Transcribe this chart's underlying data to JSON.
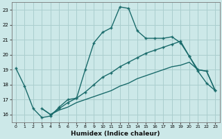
{
  "xlabel": "Humidex (Indice chaleur)",
  "bg_color": "#cce8e8",
  "grid_color": "#aacece",
  "line_color": "#1a6b6b",
  "xlim": [
    -0.5,
    23.5
  ],
  "ylim": [
    15.5,
    23.5
  ],
  "xticks": [
    0,
    1,
    2,
    3,
    4,
    5,
    6,
    7,
    8,
    9,
    10,
    11,
    12,
    13,
    14,
    15,
    16,
    17,
    18,
    19,
    20,
    21,
    22,
    23
  ],
  "yticks": [
    16,
    17,
    18,
    19,
    20,
    21,
    22,
    23
  ],
  "line1_x": [
    0,
    1,
    2,
    3,
    4,
    5,
    6,
    7,
    8,
    9,
    10,
    11,
    12,
    13,
    14,
    15,
    16,
    17,
    18,
    19,
    20,
    21,
    22,
    23
  ],
  "line1_y": [
    19.1,
    17.9,
    16.4,
    15.8,
    15.9,
    16.5,
    17.0,
    17.1,
    19.0,
    20.8,
    21.5,
    21.8,
    23.2,
    23.1,
    21.6,
    21.1,
    21.1,
    21.1,
    21.2,
    20.8,
    19.9,
    18.9,
    18.1,
    17.6
  ],
  "line2_x": [
    3,
    4,
    5,
    6,
    7,
    8,
    9,
    10,
    11,
    12,
    13,
    14,
    15,
    16,
    17,
    18,
    19,
    20,
    21,
    22,
    23
  ],
  "line2_y": [
    16.4,
    16.0,
    16.4,
    16.8,
    17.1,
    17.5,
    18.0,
    18.5,
    18.8,
    19.2,
    19.5,
    19.8,
    20.1,
    20.3,
    20.5,
    20.7,
    20.9,
    19.9,
    19.0,
    18.9,
    17.6
  ],
  "line3_x": [
    3,
    4,
    5,
    6,
    7,
    8,
    9,
    10,
    11,
    12,
    13,
    14,
    15,
    16,
    17,
    18,
    19,
    20,
    21,
    22,
    23
  ],
  "line3_y": [
    16.4,
    16.0,
    16.3,
    16.5,
    16.8,
    17.0,
    17.2,
    17.4,
    17.6,
    17.9,
    18.1,
    18.4,
    18.6,
    18.8,
    19.0,
    19.2,
    19.3,
    19.5,
    19.0,
    18.9,
    17.6
  ],
  "xlabel_fontsize": 6.5,
  "tick_fontsize": 5.0
}
